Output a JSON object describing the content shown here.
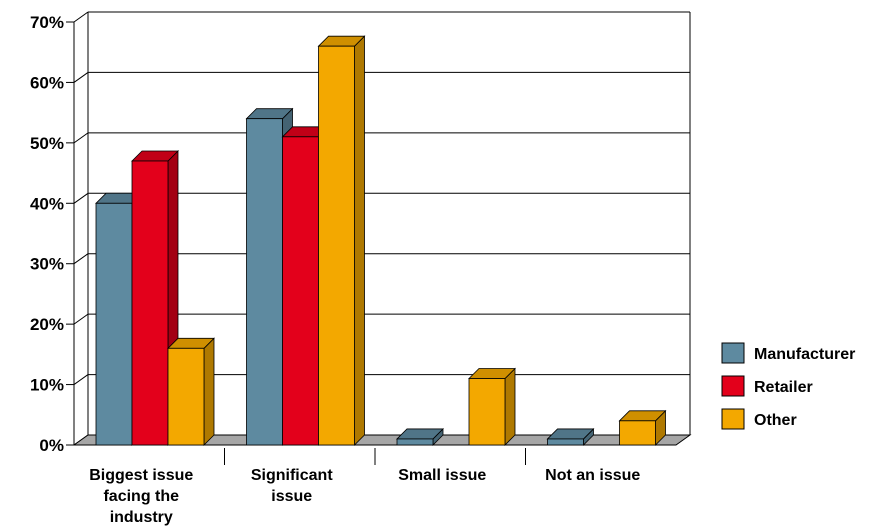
{
  "chart_data": {
    "type": "bar",
    "categories": [
      [
        "Biggest issue",
        "facing the",
        "industry"
      ],
      [
        "Significant",
        "issue"
      ],
      [
        "Small issue"
      ],
      [
        "Not an issue"
      ]
    ],
    "series": [
      {
        "name": "Manufacturer",
        "color": "#5e8aa0",
        "values": [
          40,
          54,
          1,
          1
        ]
      },
      {
        "name": "Retailer",
        "color": "#e3001b",
        "values": [
          47,
          51,
          0,
          0
        ]
      },
      {
        "name": "Other",
        "color": "#f3a800",
        "values": [
          16,
          66,
          11,
          4
        ]
      }
    ],
    "ylim": [
      0,
      70
    ],
    "yticks": [
      "0%",
      "10%",
      "20%",
      "30%",
      "40%",
      "50%",
      "60%",
      "70%"
    ],
    "title": "",
    "xlabel": "",
    "ylabel": "",
    "grid": true,
    "legend_position": "right",
    "floor_color": "#a6a6a6"
  }
}
